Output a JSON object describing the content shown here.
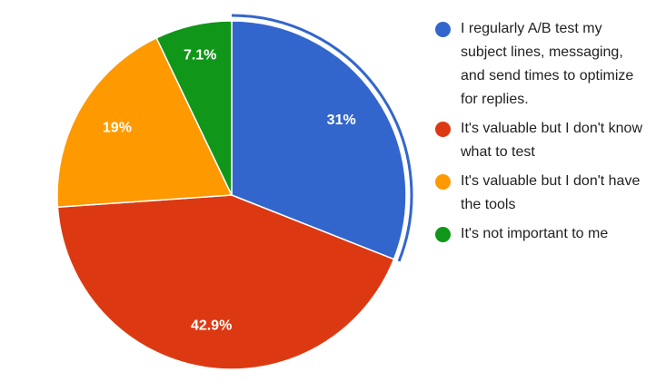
{
  "chart_data": {
    "type": "pie",
    "series": [
      {
        "name": "I regularly A/B test my subject lines, messaging, and send times to optimize for replies.",
        "color": "#3366cc",
        "values": [
          31
        ],
        "value_labels": [
          "31%"
        ]
      },
      {
        "name": "It's valuable but I don't know what to test",
        "color": "#dc3912",
        "values": [
          42.9
        ],
        "value_labels": [
          "42.9%"
        ]
      },
      {
        "name": "It's valuable but I don't have the tools",
        "color": "#ff9900",
        "values": [
          19
        ],
        "value_labels": [
          "19%"
        ]
      },
      {
        "name": "It's not important to me",
        "color": "#109618",
        "values": [
          7.1
        ],
        "value_labels": [
          "7.1%"
        ]
      }
    ],
    "legend": "right"
  }
}
